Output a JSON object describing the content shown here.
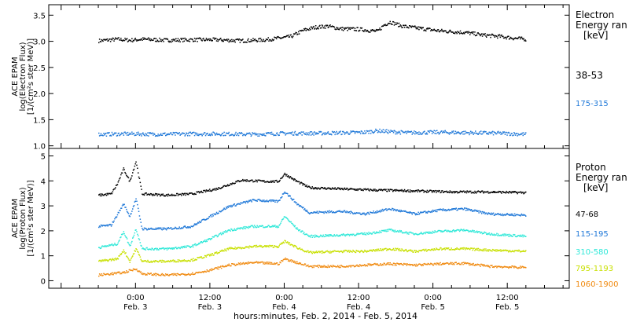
{
  "chart_data": {
    "type": "scatter",
    "xlabel": "hours:minutes, Feb.  2, 2014 - Feb.  5, 2014",
    "x_ticks": [
      {
        "t": 21,
        "time": "0:00",
        "day": "Feb. 3"
      },
      {
        "t": 33,
        "time": "12:00",
        "day": "Feb. 3"
      },
      {
        "t": 45,
        "time": "0:00",
        "day": "Feb. 4"
      },
      {
        "t": 57,
        "time": "12:00",
        "day": "Feb. 4"
      },
      {
        "t": 69,
        "time": "0:00",
        "day": "Feb. 5"
      },
      {
        "t": 81,
        "time": "12:00",
        "day": "Feb. 5"
      }
    ],
    "panels": [
      {
        "name": "electron",
        "ylabel_lines": [
          "ACE EPAM",
          "log(Electron Flux)",
          "[1/(cm²s ster MeV)]"
        ],
        "ylim": [
          0.95,
          3.7
        ],
        "yticks": [
          "1.0",
          "1.5",
          "2.0",
          "2.5",
          "3.0",
          "3.5"
        ],
        "legend_title": [
          "Electron",
          "Energy ran",
          "[keV]"
        ],
        "series": [
          {
            "name": "38-53",
            "color": "#000000",
            "points": [
              [
                15,
                3.02
              ],
              [
                18,
                3.05
              ],
              [
                20,
                3.03
              ],
              [
                22,
                3.05
              ],
              [
                26,
                3.03
              ],
              [
                30,
                3.04
              ],
              [
                34,
                3.04
              ],
              [
                38,
                3.02
              ],
              [
                42,
                3.04
              ],
              [
                46,
                3.1
              ],
              [
                48,
                3.22
              ],
              [
                50,
                3.28
              ],
              [
                52,
                3.3
              ],
              [
                54,
                3.25
              ],
              [
                57,
                3.24
              ],
              [
                60,
                3.2
              ],
              [
                61,
                3.32
              ],
              [
                62,
                3.38
              ],
              [
                64,
                3.3
              ],
              [
                66,
                3.27
              ],
              [
                70,
                3.21
              ],
              [
                74,
                3.18
              ],
              [
                77,
                3.13
              ],
              [
                80,
                3.1
              ],
              [
                82,
                3.07
              ],
              [
                84,
                3.05
              ]
            ]
          },
          {
            "name": "175-315",
            "color": "#1f78d8",
            "points": [
              [
                15,
                1.23
              ],
              [
                20,
                1.24
              ],
              [
                25,
                1.23
              ],
              [
                30,
                1.24
              ],
              [
                35,
                1.24
              ],
              [
                40,
                1.23
              ],
              [
                45,
                1.25
              ],
              [
                50,
                1.25
              ],
              [
                55,
                1.26
              ],
              [
                58,
                1.27
              ],
              [
                60,
                1.3
              ],
              [
                62,
                1.28
              ],
              [
                65,
                1.26
              ],
              [
                70,
                1.27
              ],
              [
                75,
                1.26
              ],
              [
                80,
                1.25
              ],
              [
                84,
                1.23
              ]
            ]
          }
        ]
      },
      {
        "name": "proton",
        "ylabel_lines": [
          "ACE EPAM",
          "log(Proton Flux)",
          "[1/(cm²s ster MeV)]"
        ],
        "ylim": [
          -0.3,
          5.3
        ],
        "yticks": [
          "0",
          "1",
          "2",
          "3",
          "4",
          "5"
        ],
        "legend_title": [
          "Proton",
          "Energy ran",
          "[keV]"
        ],
        "series": [
          {
            "name": "47-68",
            "color": "#000000",
            "points": [
              [
                15,
                3.45
              ],
              [
                17,
                3.5
              ],
              [
                18,
                3.9
              ],
              [
                19,
                4.5
              ],
              [
                20,
                4.0
              ],
              [
                21,
                4.8
              ],
              [
                22,
                3.5
              ],
              [
                26,
                3.45
              ],
              [
                30,
                3.5
              ],
              [
                34,
                3.7
              ],
              [
                38,
                4.05
              ],
              [
                42,
                4.0
              ],
              [
                44,
                4.0
              ],
              [
                45,
                4.3
              ],
              [
                47,
                4.0
              ],
              [
                49,
                3.75
              ],
              [
                54,
                3.7
              ],
              [
                60,
                3.65
              ],
              [
                66,
                3.62
              ],
              [
                72,
                3.58
              ],
              [
                78,
                3.58
              ],
              [
                84,
                3.55
              ]
            ]
          },
          {
            "name": "115-195",
            "color": "#1f78d8",
            "points": [
              [
                15,
                2.2
              ],
              [
                17,
                2.25
              ],
              [
                19,
                3.1
              ],
              [
                20,
                2.6
              ],
              [
                21,
                3.3
              ],
              [
                22,
                2.1
              ],
              [
                26,
                2.1
              ],
              [
                30,
                2.2
              ],
              [
                33,
                2.6
              ],
              [
                36,
                3.0
              ],
              [
                40,
                3.25
              ],
              [
                44,
                3.2
              ],
              [
                45,
                3.6
              ],
              [
                47,
                3.1
              ],
              [
                49,
                2.75
              ],
              [
                54,
                2.8
              ],
              [
                58,
                2.7
              ],
              [
                62,
                2.9
              ],
              [
                66,
                2.7
              ],
              [
                70,
                2.85
              ],
              [
                74,
                2.9
              ],
              [
                78,
                2.7
              ],
              [
                84,
                2.65
              ]
            ]
          },
          {
            "name": "310-580",
            "color": "#2ee8d8",
            "points": [
              [
                15,
                1.35
              ],
              [
                18,
                1.5
              ],
              [
                19,
                2.0
              ],
              [
                20,
                1.4
              ],
              [
                21,
                2.1
              ],
              [
                22,
                1.3
              ],
              [
                26,
                1.3
              ],
              [
                30,
                1.4
              ],
              [
                33,
                1.7
              ],
              [
                36,
                2.05
              ],
              [
                40,
                2.2
              ],
              [
                44,
                2.2
              ],
              [
                45,
                2.6
              ],
              [
                47,
                2.1
              ],
              [
                49,
                1.8
              ],
              [
                54,
                1.85
              ],
              [
                58,
                1.9
              ],
              [
                62,
                2.05
              ],
              [
                66,
                1.9
              ],
              [
                70,
                2.0
              ],
              [
                74,
                2.05
              ],
              [
                78,
                1.9
              ],
              [
                84,
                1.8
              ]
            ]
          },
          {
            "name": "795-1193",
            "color": "#c8e000",
            "points": [
              [
                15,
                0.8
              ],
              [
                18,
                0.9
              ],
              [
                19,
                1.25
              ],
              [
                20,
                0.8
              ],
              [
                21,
                1.3
              ],
              [
                22,
                0.8
              ],
              [
                26,
                0.8
              ],
              [
                30,
                0.85
              ],
              [
                33,
                1.05
              ],
              [
                36,
                1.3
              ],
              [
                40,
                1.4
              ],
              [
                44,
                1.4
              ],
              [
                45,
                1.6
              ],
              [
                47,
                1.35
              ],
              [
                49,
                1.15
              ],
              [
                54,
                1.2
              ],
              [
                58,
                1.2
              ],
              [
                62,
                1.3
              ],
              [
                66,
                1.2
              ],
              [
                70,
                1.3
              ],
              [
                74,
                1.3
              ],
              [
                78,
                1.25
              ],
              [
                84,
                1.2
              ]
            ]
          },
          {
            "name": "1060-1900",
            "color": "#f08a10",
            "points": [
              [
                15,
                0.25
              ],
              [
                19,
                0.35
              ],
              [
                21,
                0.5
              ],
              [
                22,
                0.3
              ],
              [
                26,
                0.25
              ],
              [
                30,
                0.3
              ],
              [
                33,
                0.45
              ],
              [
                36,
                0.65
              ],
              [
                40,
                0.75
              ],
              [
                44,
                0.7
              ],
              [
                45,
                0.9
              ],
              [
                47,
                0.75
              ],
              [
                49,
                0.6
              ],
              [
                54,
                0.6
              ],
              [
                58,
                0.65
              ],
              [
                62,
                0.7
              ],
              [
                66,
                0.65
              ],
              [
                70,
                0.7
              ],
              [
                74,
                0.72
              ],
              [
                78,
                0.6
              ],
              [
                84,
                0.55
              ]
            ]
          }
        ]
      }
    ]
  }
}
